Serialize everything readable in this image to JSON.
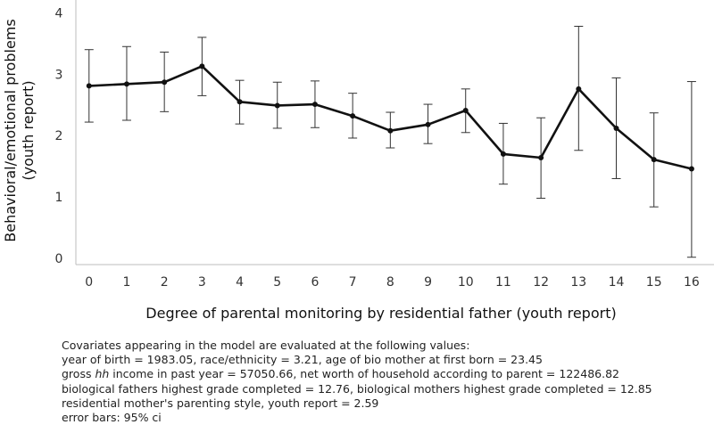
{
  "chart_data": {
    "type": "line",
    "xlabel": "Degree of parental monitoring by residential father (youth report)",
    "ylabel_lines": [
      "Behavioral/emotional problems",
      "(youth report)"
    ],
    "x": [
      0,
      1,
      2,
      3,
      4,
      5,
      6,
      7,
      8,
      9,
      10,
      11,
      12,
      13,
      14,
      15,
      16
    ],
    "y": [
      2.81,
      2.84,
      2.87,
      3.13,
      2.55,
      2.49,
      2.51,
      2.32,
      2.08,
      2.18,
      2.41,
      1.7,
      1.64,
      2.76,
      2.12,
      1.61,
      1.46
    ],
    "ci_low": [
      2.22,
      2.25,
      2.39,
      2.65,
      2.19,
      2.12,
      2.13,
      1.96,
      1.8,
      1.87,
      2.05,
      1.21,
      0.98,
      1.76,
      1.3,
      0.84,
      0.02
    ],
    "ci_high": [
      3.4,
      3.45,
      3.36,
      3.6,
      2.9,
      2.87,
      2.89,
      2.69,
      2.38,
      2.51,
      2.76,
      2.2,
      2.29,
      3.78,
      2.94,
      2.37,
      2.88
    ],
    "xticks": [
      "0",
      "1",
      "2",
      "3",
      "4",
      "5",
      "6",
      "7",
      "8",
      "9",
      "10",
      "11",
      "12",
      "13",
      "14",
      "15",
      "16"
    ],
    "yticks": [
      0,
      1,
      2,
      3,
      4
    ],
    "ytick_labels": [
      "0",
      "1",
      "2",
      "3",
      "4"
    ],
    "ylim": [
      -0.1,
      4.15
    ],
    "xlim": [
      -0.35,
      16.5
    ],
    "grid": false,
    "line_color": "#111111",
    "axis_color": "#bdbdbd"
  },
  "notes": {
    "line1": "Covariates appearing in the model are evaluated at the following values:",
    "line2": "year of birth = 1983.05, race/ethnicity = 3.21, age of bio mother at first born = 23.45",
    "line3_a": "gross ",
    "line3_em": "hh",
    "line3_b": " income in past year = 57050.66, net worth of household according to parent = 122486.82",
    "line4": "biological fathers highest grade completed = 12.76, biological mothers highest grade completed = 12.85",
    "line5": "residential mother's parenting style, youth report = 2.59",
    "line6": "error bars: 95% ci"
  }
}
